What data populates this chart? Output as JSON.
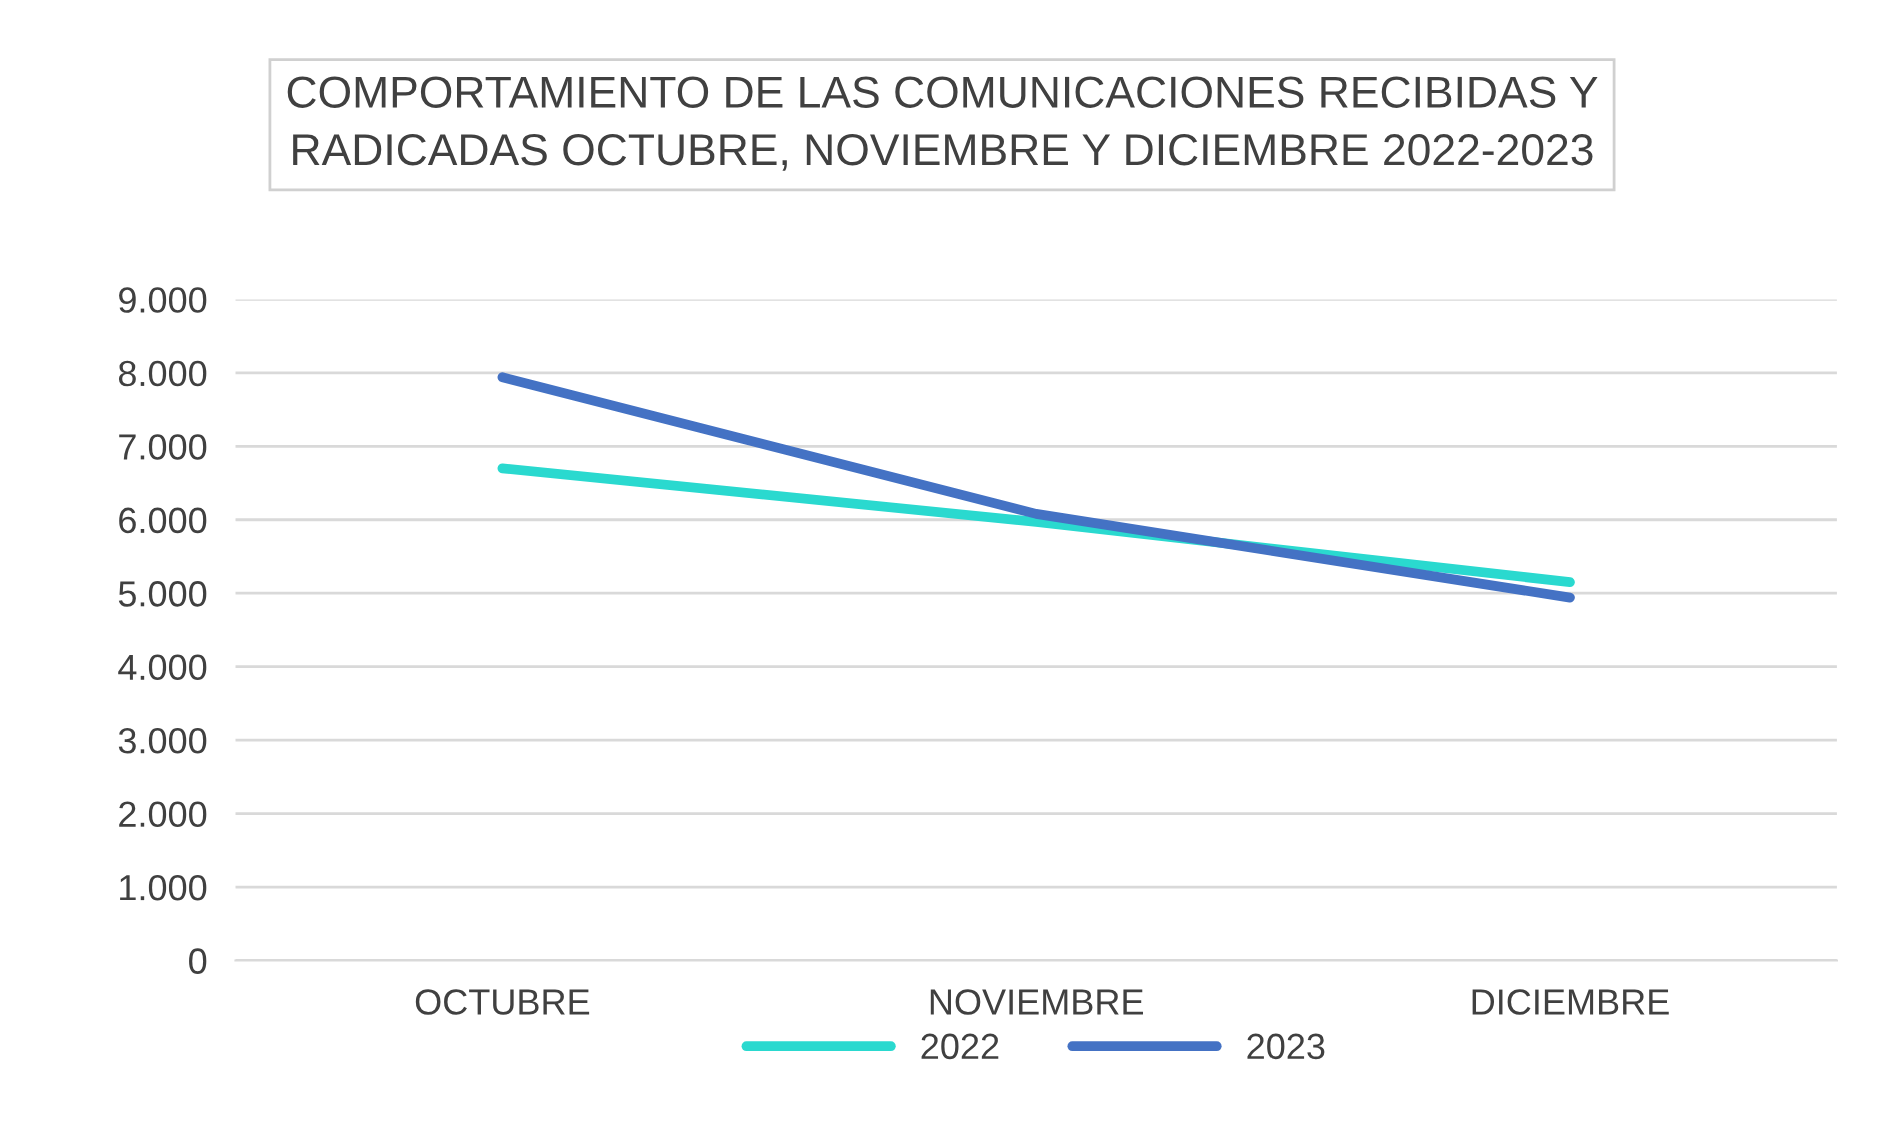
{
  "chart_data": {
    "type": "line",
    "title": "COMPORTAMIENTO DE LAS COMUNICACIONES RECIBIDAS Y\nRADICADAS OCTUBRE, NOVIEMBRE Y DICIEMBRE 2022-2023",
    "categories": [
      "OCTUBRE",
      "NOVIEMBRE",
      "DICIEMBRE"
    ],
    "series": [
      {
        "name": "2022",
        "color": "#2ad9cf",
        "values": [
          6700,
          5970,
          5150
        ]
      },
      {
        "name": "2023",
        "color": "#4472c4",
        "values": [
          7940,
          6080,
          4940
        ]
      }
    ],
    "ylim": [
      0,
      9000
    ],
    "yticks": [
      0,
      {
        "value": 1000,
        "label": "1.000"
      },
      {
        "value": 2000,
        "label": "2.000"
      },
      {
        "value": 3000,
        "label": "3.000"
      },
      {
        "value": 4000,
        "label": "4.000"
      },
      {
        "value": 5000,
        "label": "5.000"
      },
      {
        "value": 6000,
        "label": "6.000"
      },
      {
        "value": 7000,
        "label": "7.000"
      },
      {
        "value": 8000,
        "label": "8.000"
      },
      {
        "value": 9000,
        "label": "9.000"
      }
    ],
    "grid": "y",
    "legend": "bottom",
    "line_style": "solid",
    "marker": "none"
  }
}
